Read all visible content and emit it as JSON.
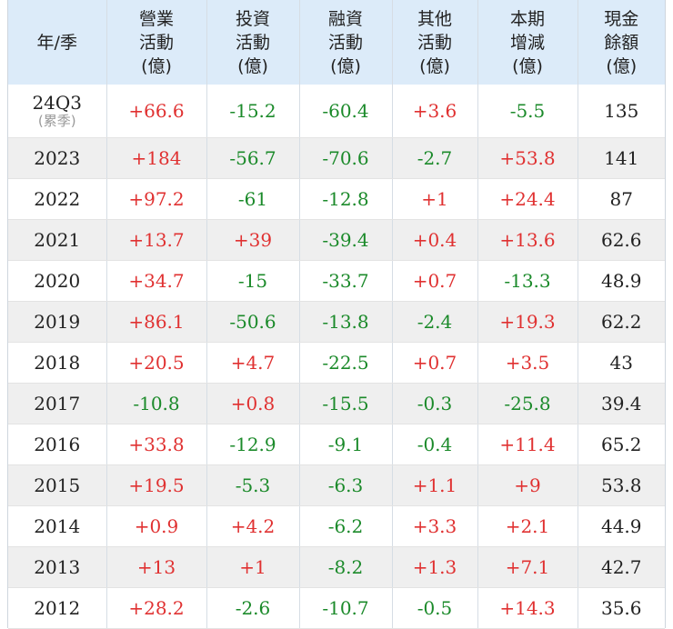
{
  "headers": [
    {
      "lines": [
        "年/季"
      ]
    },
    {
      "lines": [
        "營業",
        "活動",
        "(億)"
      ]
    },
    {
      "lines": [
        "投資",
        "活動",
        "(億)"
      ]
    },
    {
      "lines": [
        "融資",
        "活動",
        "(億)"
      ]
    },
    {
      "lines": [
        "其他",
        "活動",
        "(億)"
      ]
    },
    {
      "lines": [
        "本期",
        "增減",
        "(億)"
      ]
    },
    {
      "lines": [
        "現金",
        "餘額",
        "(億)"
      ]
    }
  ],
  "rows": [
    {
      "period": "24Q3",
      "sub": "(累季)",
      "operating": "+66.6",
      "investing": "-15.2",
      "financing": "-60.4",
      "other": "+3.6",
      "change": "-5.5",
      "balance": "135"
    },
    {
      "period": "2023",
      "operating": "+184",
      "investing": "-56.7",
      "financing": "-70.6",
      "other": "-2.7",
      "change": "+53.8",
      "balance": "141"
    },
    {
      "period": "2022",
      "operating": "+97.2",
      "investing": "-61",
      "financing": "-12.8",
      "other": "+1",
      "change": "+24.4",
      "balance": "87"
    },
    {
      "period": "2021",
      "operating": "+13.7",
      "investing": "+39",
      "financing": "-39.4",
      "other": "+0.4",
      "change": "+13.6",
      "balance": "62.6"
    },
    {
      "period": "2020",
      "operating": "+34.7",
      "investing": "-15",
      "financing": "-33.7",
      "other": "+0.7",
      "change": "-13.3",
      "balance": "48.9"
    },
    {
      "period": "2019",
      "operating": "+86.1",
      "investing": "-50.6",
      "financing": "-13.8",
      "other": "-2.4",
      "change": "+19.3",
      "balance": "62.2"
    },
    {
      "period": "2018",
      "operating": "+20.5",
      "investing": "+4.7",
      "financing": "-22.5",
      "other": "+0.7",
      "change": "+3.5",
      "balance": "43"
    },
    {
      "period": "2017",
      "operating": "-10.8",
      "investing": "+0.8",
      "financing": "-15.5",
      "other": "-0.3",
      "change": "-25.8",
      "balance": "39.4"
    },
    {
      "period": "2016",
      "operating": "+33.8",
      "investing": "-12.9",
      "financing": "-9.1",
      "other": "-0.4",
      "change": "+11.4",
      "balance": "65.2"
    },
    {
      "period": "2015",
      "operating": "+19.5",
      "investing": "-5.3",
      "financing": "-6.3",
      "other": "+1.1",
      "change": "+9",
      "balance": "53.8"
    },
    {
      "period": "2014",
      "operating": "+0.9",
      "investing": "+4.2",
      "financing": "-6.2",
      "other": "+3.3",
      "change": "+2.1",
      "balance": "44.9"
    },
    {
      "period": "2013",
      "operating": "+13",
      "investing": "+1",
      "financing": "-8.2",
      "other": "+1.3",
      "change": "+7.1",
      "balance": "42.7"
    },
    {
      "period": "2012",
      "operating": "+28.2",
      "investing": "-2.6",
      "financing": "-10.7",
      "other": "-0.5",
      "change": "+14.3",
      "balance": "35.6"
    }
  ],
  "colors": {
    "positive": "#e03131",
    "negative": "#1b8a2a",
    "neutral": "#222222",
    "header_bg": "#dcebf9",
    "stripe_bg": "#efefef"
  }
}
